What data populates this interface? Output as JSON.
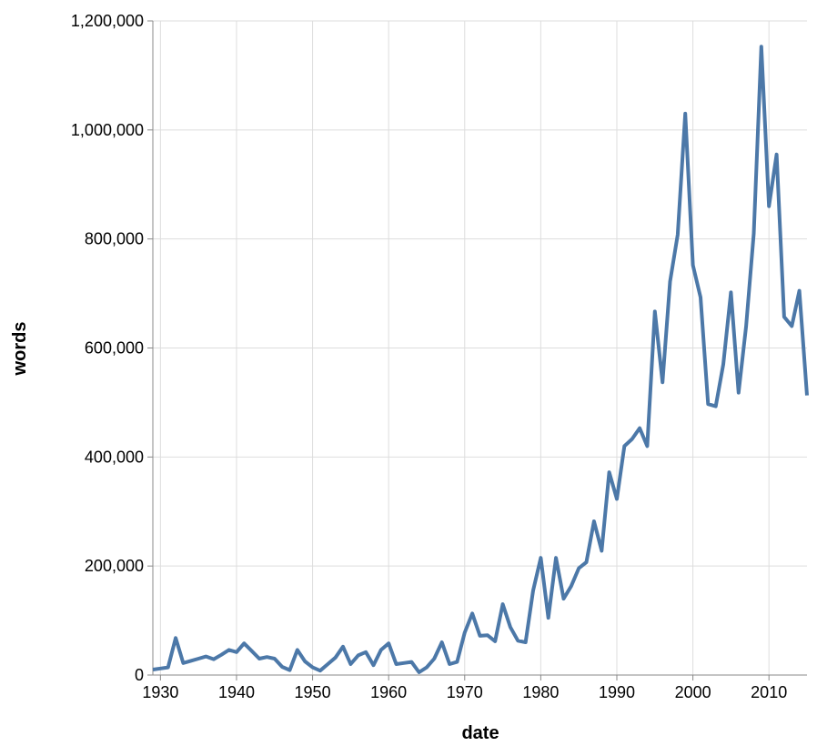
{
  "chart_data": {
    "type": "line",
    "x_label": "date",
    "y_label": "words",
    "x": [
      1929,
      1930,
      1931,
      1932,
      1933,
      1934,
      1935,
      1936,
      1937,
      1938,
      1939,
      1940,
      1941,
      1942,
      1943,
      1944,
      1945,
      1946,
      1947,
      1948,
      1949,
      1950,
      1951,
      1952,
      1953,
      1954,
      1955,
      1956,
      1957,
      1958,
      1959,
      1960,
      1961,
      1962,
      1963,
      1964,
      1965,
      1966,
      1967,
      1968,
      1969,
      1970,
      1971,
      1972,
      1973,
      1974,
      1975,
      1976,
      1977,
      1978,
      1979,
      1980,
      1981,
      1982,
      1983,
      1984,
      1985,
      1986,
      1987,
      1988,
      1989,
      1990,
      1991,
      1992,
      1993,
      1994,
      1995,
      1996,
      1997,
      1998,
      1999,
      2000,
      2001,
      2002,
      2003,
      2004,
      2005,
      2006,
      2007,
      2008,
      2009,
      2010,
      2011,
      2012,
      2013,
      2014,
      2015
    ],
    "series": [
      {
        "name": "words",
        "color": "#4c78a8",
        "values": [
          10000,
          12000,
          14000,
          68000,
          22000,
          26000,
          30000,
          34000,
          29000,
          37000,
          46000,
          42000,
          58000,
          44000,
          30000,
          33000,
          30000,
          15000,
          9000,
          46000,
          25000,
          14000,
          8000,
          20000,
          32000,
          52000,
          20000,
          36000,
          42000,
          18000,
          46000,
          58000,
          20000,
          22000,
          24000,
          5000,
          14000,
          30000,
          60000,
          20000,
          24000,
          78000,
          113000,
          72000,
          73000,
          62000,
          130000,
          88000,
          63000,
          60000,
          155000,
          215000,
          105000,
          215000,
          140000,
          163000,
          196000,
          207000,
          282000,
          228000,
          372000,
          323000,
          420000,
          433000,
          453000,
          420000,
          667000,
          537000,
          722000,
          808000,
          1030000,
          752000,
          693000,
          497000,
          493000,
          570000,
          702000,
          518000,
          640000,
          810000,
          1153000,
          860000,
          955000,
          657000,
          640000,
          705000,
          513000
        ]
      }
    ],
    "xlim": [
      1929,
      2015
    ],
    "xticks": [
      1930,
      1940,
      1950,
      1960,
      1970,
      1980,
      1990,
      2000,
      2010
    ],
    "ylim": [
      0,
      1200000
    ],
    "yticks": [
      0,
      {
        "value": 200000,
        "label": "200,000"
      },
      {
        "value": 400000,
        "label": "400,000"
      },
      {
        "value": 600000,
        "label": "600,000"
      },
      {
        "value": 800000,
        "label": "800,000"
      },
      {
        "value": 1000000,
        "label": "1,000,000"
      },
      {
        "value": 1200000,
        "label": "1,200,000"
      }
    ],
    "grid": true
  }
}
